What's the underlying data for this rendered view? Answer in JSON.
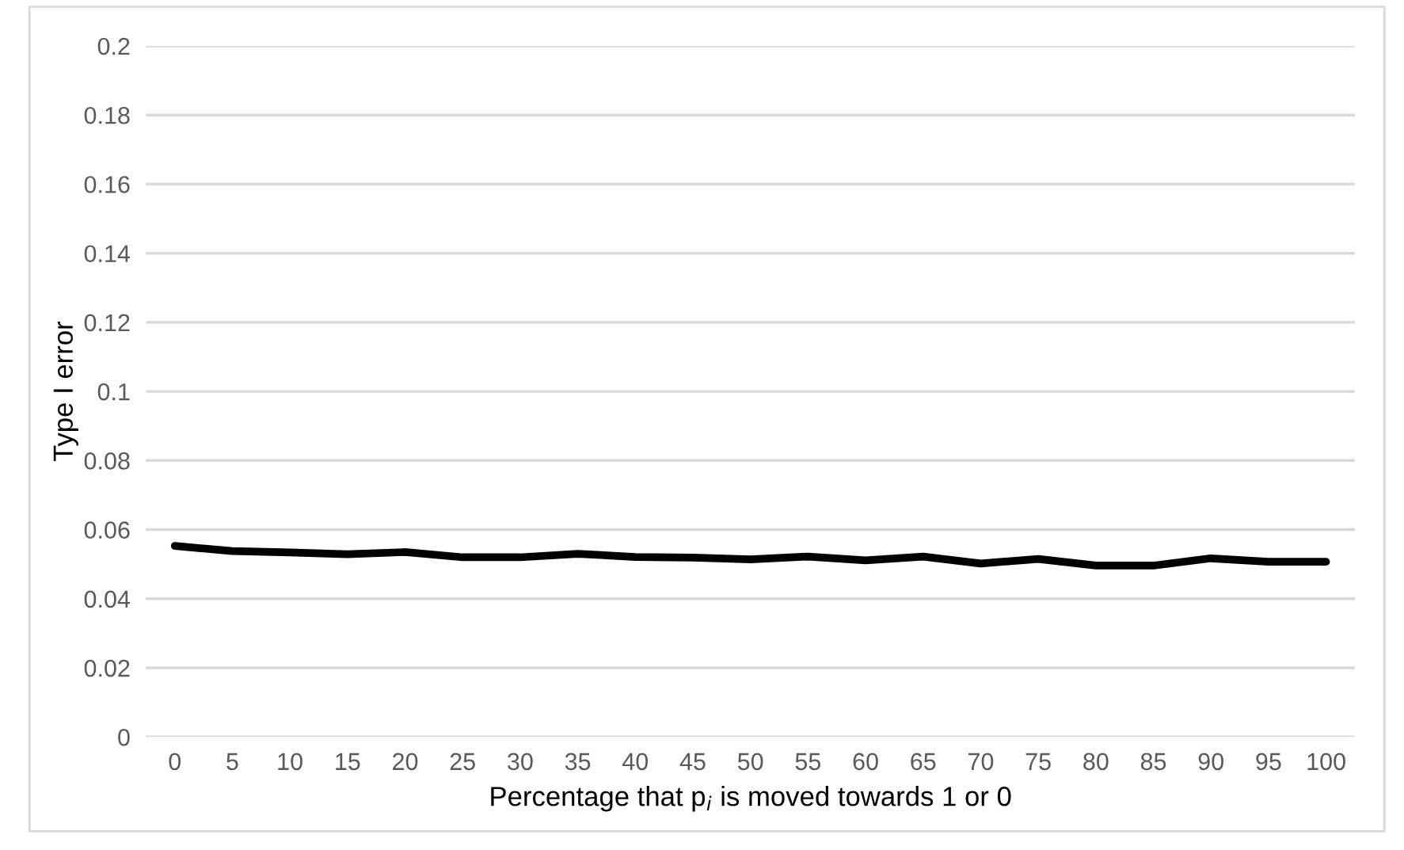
{
  "chart_data": {
    "type": "line",
    "xlabel": "Percentage that p$_{i}$ is moved towards 1 or 0",
    "ylabel": "Type I error",
    "categories": [
      "0",
      "5",
      "10",
      "15",
      "20",
      "25",
      "30",
      "35",
      "40",
      "45",
      "50",
      "55",
      "60",
      "65",
      "70",
      "75",
      "80",
      "85",
      "90",
      "95",
      "100"
    ],
    "series": [
      {
        "color": "#000000",
        "values": [
          0.0553,
          0.0538,
          0.0534,
          0.0529,
          0.0535,
          0.052,
          0.052,
          0.053,
          0.0521,
          0.0519,
          0.0514,
          0.0522,
          0.0511,
          0.0522,
          0.0502,
          0.0515,
          0.0496,
          0.0496,
          0.0517,
          0.0507,
          0.0507
        ]
      }
    ],
    "ylim": [
      0,
      0.2
    ],
    "yticks": [
      0,
      0.02,
      0.04,
      0.06,
      0.08,
      0.1,
      0.12,
      0.14,
      0.16,
      0.18,
      0.2
    ],
    "grid": "y",
    "legend": false,
    "marker": "none",
    "line_style": "solid"
  }
}
